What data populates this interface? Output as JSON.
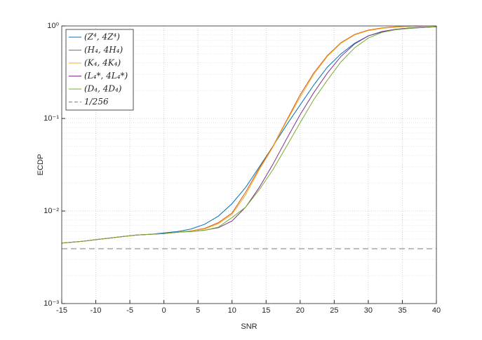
{
  "chart_data": {
    "type": "line",
    "xlabel": "SNR",
    "ylabel": "ECDP",
    "x": [
      -15,
      -12,
      -10,
      -8,
      -6,
      -4,
      -2,
      0,
      2,
      4,
      6,
      8,
      10,
      12,
      14,
      16,
      18,
      20,
      22,
      24,
      26,
      28,
      30,
      32,
      34,
      36,
      38,
      40
    ],
    "series": [
      {
        "name": "(Z⁴, 4Z⁴)",
        "color": "#0072bd",
        "values": [
          0.0045,
          0.0047,
          0.0049,
          0.0051,
          0.0053,
          0.0055,
          0.0056,
          0.0058,
          0.006,
          0.0064,
          0.0072,
          0.0088,
          0.012,
          0.018,
          0.03,
          0.05,
          0.085,
          0.14,
          0.23,
          0.36,
          0.5,
          0.65,
          0.78,
          0.86,
          0.91,
          0.94,
          0.96,
          0.98
        ]
      },
      {
        "name": "(H₄, 4H₄)",
        "color": "#d95319",
        "values": [
          0.0045,
          0.0047,
          0.0049,
          0.0051,
          0.0053,
          0.0055,
          0.0056,
          0.0057,
          0.0059,
          0.0061,
          0.0065,
          0.0075,
          0.0095,
          0.016,
          0.029,
          0.05,
          0.095,
          0.18,
          0.31,
          0.48,
          0.66,
          0.81,
          0.9,
          0.95,
          0.98,
          0.99,
          1.0,
          1.0
        ]
      },
      {
        "name": "(K₄, 4K₄)",
        "color": "#edb120",
        "values": [
          0.0045,
          0.0047,
          0.0049,
          0.0051,
          0.0053,
          0.0055,
          0.0056,
          0.0057,
          0.0059,
          0.0061,
          0.0064,
          0.0073,
          0.0092,
          0.015,
          0.028,
          0.049,
          0.093,
          0.17,
          0.3,
          0.47,
          0.65,
          0.8,
          0.89,
          0.94,
          0.97,
          0.99,
          1.0,
          1.0
        ]
      },
      {
        "name": "(L₄*, 4L₄*)",
        "color": "#7e2f8e",
        "values": [
          0.0045,
          0.0047,
          0.0049,
          0.0051,
          0.0053,
          0.0055,
          0.0056,
          0.0057,
          0.0059,
          0.006,
          0.0062,
          0.0066,
          0.0078,
          0.011,
          0.018,
          0.032,
          0.06,
          0.11,
          0.19,
          0.31,
          0.47,
          0.64,
          0.78,
          0.87,
          0.92,
          0.95,
          0.97,
          0.98
        ]
      },
      {
        "name": "(D₄, 4D₄)",
        "color": "#77ac30",
        "values": [
          0.0045,
          0.0047,
          0.0049,
          0.0051,
          0.0053,
          0.0055,
          0.0056,
          0.0057,
          0.0059,
          0.006,
          0.0062,
          0.0067,
          0.0085,
          0.011,
          0.017,
          0.028,
          0.05,
          0.09,
          0.16,
          0.26,
          0.41,
          0.58,
          0.74,
          0.85,
          0.91,
          0.94,
          0.96,
          0.98
        ]
      }
    ],
    "reference": {
      "name": "1/256",
      "value": 0.00390625,
      "color": "#808080"
    },
    "xlim": [
      -15,
      40
    ],
    "xticks": [
      -15,
      -10,
      -5,
      0,
      5,
      10,
      15,
      20,
      25,
      30,
      35,
      40
    ],
    "ylim": [
      0.001,
      1
    ],
    "ylog": true,
    "yticks": [
      {
        "value": 0.001,
        "label": "10⁻³"
      },
      {
        "value": 0.01,
        "label": "10⁻²"
      },
      {
        "value": 0.1,
        "label": "10⁻¹"
      },
      {
        "value": 1,
        "label": "10⁰"
      }
    ],
    "grid": true,
    "legend": "upper left"
  }
}
